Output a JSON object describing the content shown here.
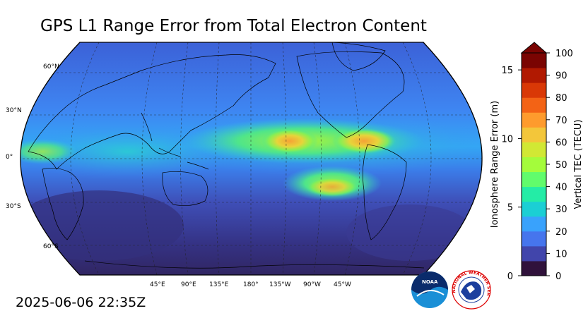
{
  "title": "GPS L1 Range Error from Total Electron Content",
  "timestamp": "2025-06-06 22:35Z",
  "lat_labels": [
    "60°N",
    "30°N",
    "0°",
    "30°S",
    "60°S"
  ],
  "lon_labels": [
    "45°E",
    "90°E",
    "135°E",
    "180°",
    "135°W",
    "90°W",
    "45°W"
  ],
  "colorbar": {
    "left_label": "Ionosphere Range Error (m)",
    "right_label": "Vertical TEC (TECU)",
    "left_ticks": [
      "0",
      "5",
      "10",
      "15"
    ],
    "right_ticks": [
      "0",
      "10",
      "20",
      "30",
      "40",
      "50",
      "60",
      "70",
      "80",
      "90",
      "100"
    ],
    "colors": [
      "#30123b",
      "#4145ab",
      "#4675ed",
      "#39a2fc",
      "#1bcfd4",
      "#24eca6",
      "#61fc6c",
      "#a4fc3b",
      "#d1e834",
      "#f3c63a",
      "#fe9b2d",
      "#f36315",
      "#d93806",
      "#b11901",
      "#7a0402"
    ]
  },
  "logos": {
    "noaa_text": "NOAA",
    "nws_text": "NATIONAL WEATHER SERVICE"
  },
  "colors": {
    "ocean_low": "#3a3a8f",
    "ocean_mid": "#3e7bf0",
    "equatorial_high": "#f6a235"
  }
}
